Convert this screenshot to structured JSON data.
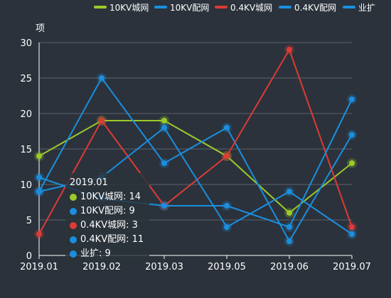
{
  "chart_data": {
    "type": "line",
    "unit_label": "项",
    "categories": [
      "2019.01",
      "2019.02",
      "2019.03",
      "2019.05",
      "2019.06",
      "2019.07"
    ],
    "ylim": [
      0,
      30
    ],
    "yticks": [
      0,
      5,
      10,
      15,
      20,
      25,
      30
    ],
    "grid": true,
    "legend_position": "top-right",
    "series": [
      {
        "name": "10KV城网",
        "color": "#9bca2b",
        "values": [
          14,
          19,
          19,
          14,
          6,
          13
        ]
      },
      {
        "name": "10KV配网",
        "color": "#1a8fdf",
        "values": [
          9,
          25,
          13,
          18,
          2,
          17
        ]
      },
      {
        "name": "0.4KV城网",
        "color": "#dd3b36",
        "values": [
          3,
          19,
          7,
          14,
          29,
          4
        ]
      },
      {
        "name": "0.4KV配网",
        "color": "#1a8fdf",
        "values": [
          11,
          8,
          7,
          7,
          4,
          22
        ]
      },
      {
        "name": "业扩",
        "color": "#1a8fdf",
        "values": [
          9,
          11,
          18,
          4,
          9,
          3
        ]
      }
    ],
    "tooltip": {
      "title": "2019.01",
      "rows": [
        {
          "label": "10KV城网: 14",
          "color": "#9bca2b"
        },
        {
          "label": "10KV配网: 9",
          "color": "#1a8fdf"
        },
        {
          "label": "0.4KV城网: 3",
          "color": "#dd3b36"
        },
        {
          "label": "0.4KV配网: 11",
          "color": "#1a8fdf"
        },
        {
          "label": "业扩: 9",
          "color": "#1a8fdf"
        }
      ]
    }
  }
}
